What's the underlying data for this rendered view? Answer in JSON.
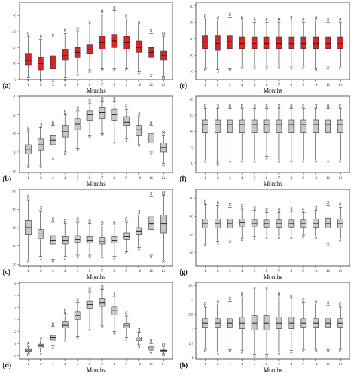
{
  "chart_data": [
    {
      "type": "boxplot",
      "panel_label": "(a)",
      "xlabel": "Months",
      "ylabel": "",
      "categories": [
        "1",
        "2",
        "3",
        "4",
        "5",
        "6",
        "7",
        "8",
        "9",
        "10",
        "11",
        "12"
      ],
      "ylim": [
        0,
        48
      ],
      "yticks": [
        0,
        10,
        20,
        30,
        40
      ],
      "box_color": "#d62728",
      "boxes": [
        {
          "whisker_low": 1,
          "q1": 9,
          "median": 12,
          "q3": 16,
          "whisker_high": 27
        },
        {
          "whisker_low": 0,
          "q1": 6,
          "median": 10,
          "q3": 14,
          "whisker_high": 25
        },
        {
          "whisker_low": 0,
          "q1": 7,
          "median": 11,
          "q3": 15,
          "whisker_high": 26
        },
        {
          "whisker_low": 1,
          "q1": 12,
          "median": 15,
          "q3": 19,
          "whisker_high": 29
        },
        {
          "whisker_low": 4,
          "q1": 14,
          "median": 17,
          "q3": 20,
          "whisker_high": 30
        },
        {
          "whisker_low": 6,
          "q1": 16,
          "median": 19,
          "q3": 22,
          "whisker_high": 34
        },
        {
          "whisker_low": 7,
          "q1": 19,
          "median": 23,
          "q3": 27,
          "whisker_high": 41
        },
        {
          "whisker_low": 7,
          "q1": 20,
          "median": 24,
          "q3": 28,
          "whisker_high": 43
        },
        {
          "whisker_low": 7,
          "q1": 19,
          "median": 23,
          "q3": 27,
          "whisker_high": 38
        },
        {
          "whisker_low": 5,
          "q1": 17,
          "median": 20,
          "q3": 24,
          "whisker_high": 34
        },
        {
          "whisker_low": 3,
          "q1": 14,
          "median": 17,
          "q3": 20,
          "whisker_high": 29
        },
        {
          "whisker_low": 2,
          "q1": 12,
          "median": 15,
          "q3": 18,
          "whisker_high": 27
        }
      ]
    },
    {
      "type": "boxplot",
      "panel_label": "(e)",
      "xlabel": "Months",
      "ylabel": "",
      "categories": [
        "1",
        "2",
        "3",
        "4",
        "5",
        "6",
        "7",
        "8",
        "9",
        "10",
        "11",
        "12"
      ],
      "ylim": [
        -5,
        42
      ],
      "yticks": [
        0,
        10,
        20,
        30,
        40
      ],
      "box_color": "#d62728",
      "boxes": [
        {
          "whisker_low": 2,
          "q1": 14,
          "median": 18,
          "q3": 22,
          "whisker_high": 32
        },
        {
          "whisker_low": 1,
          "q1": 13,
          "median": 17,
          "q3": 22,
          "whisker_high": 31
        },
        {
          "whisker_low": 2,
          "q1": 14,
          "median": 18,
          "q3": 22,
          "whisker_high": 33
        },
        {
          "whisker_low": 3,
          "q1": 14,
          "median": 17,
          "q3": 21,
          "whisker_high": 31
        },
        {
          "whisker_low": 3,
          "q1": 14,
          "median": 17,
          "q3": 21,
          "whisker_high": 30
        },
        {
          "whisker_low": 3,
          "q1": 14,
          "median": 17,
          "q3": 21,
          "whisker_high": 30
        },
        {
          "whisker_low": 3,
          "q1": 14,
          "median": 17,
          "q3": 21,
          "whisker_high": 30
        },
        {
          "whisker_low": 3,
          "q1": 14,
          "median": 17,
          "q3": 21,
          "whisker_high": 31
        },
        {
          "whisker_low": 3,
          "q1": 14,
          "median": 17,
          "q3": 21,
          "whisker_high": 30
        },
        {
          "whisker_low": 2,
          "q1": 14,
          "median": 17,
          "q3": 21,
          "whisker_high": 31
        },
        {
          "whisker_low": 3,
          "q1": 14,
          "median": 17,
          "q3": 21,
          "whisker_high": 30
        },
        {
          "whisker_low": 3,
          "q1": 14,
          "median": 17,
          "q3": 21,
          "whisker_high": 30
        }
      ]
    },
    {
      "type": "boxplot",
      "panel_label": "(b)",
      "xlabel": "Months",
      "ylabel": "",
      "categories": [
        "1",
        "2",
        "3",
        "4",
        "5",
        "6",
        "7",
        "8",
        "9",
        "10",
        "11",
        "12"
      ],
      "ylim": [
        -11,
        30
      ],
      "yticks": [
        -10,
        0,
        10,
        20,
        30
      ],
      "box_color": "#c8c8c8",
      "boxes": [
        {
          "whisker_low": -7,
          "q1": -1,
          "median": 1.5,
          "q3": 4,
          "whisker_high": 11
        },
        {
          "whisker_low": -7,
          "q1": 1,
          "median": 4,
          "q3": 7,
          "whisker_high": 13
        },
        {
          "whisker_low": -3,
          "q1": 4,
          "median": 6.5,
          "q3": 9,
          "whisker_high": 14
        },
        {
          "whisker_low": 0,
          "q1": 8,
          "median": 11,
          "q3": 14,
          "whisker_high": 20
        },
        {
          "whisker_low": 2,
          "q1": 12,
          "median": 15,
          "q3": 18,
          "whisker_high": 22
        },
        {
          "whisker_low": 9,
          "q1": 17,
          "median": 20,
          "q3": 22,
          "whisker_high": 26
        },
        {
          "whisker_low": 10,
          "q1": 18,
          "median": 21,
          "q3": 24,
          "whisker_high": 27
        },
        {
          "whisker_low": 6,
          "q1": 17,
          "median": 20,
          "q3": 23,
          "whisker_high": 27
        },
        {
          "whisker_low": 7,
          "q1": 14,
          "median": 16,
          "q3": 19,
          "whisker_high": 23
        },
        {
          "whisker_low": 4,
          "q1": 9,
          "median": 12,
          "q3": 14,
          "whisker_high": 19
        },
        {
          "whisker_low": 0,
          "q1": 5,
          "median": 7.5,
          "q3": 10,
          "whisker_high": 14
        },
        {
          "whisker_low": -6,
          "q1": 0,
          "median": 2.5,
          "q3": 5,
          "whisker_high": 9
        }
      ]
    },
    {
      "type": "boxplot",
      "panel_label": "(f)",
      "xlabel": "Months",
      "ylabel": "",
      "categories": [
        "1",
        "2",
        "3",
        "4",
        "5",
        "6",
        "7",
        "8",
        "9",
        "10",
        "11",
        "12"
      ],
      "ylim": [
        -3,
        21
      ],
      "yticks": [
        0,
        5,
        10,
        15,
        20
      ],
      "box_color": "#c8c8c8",
      "boxes": [
        {
          "whisker_low": 1,
          "q1": 9.5,
          "median": 12,
          "q3": 13.5,
          "whisker_high": 17
        },
        {
          "whisker_low": 0,
          "q1": 9.5,
          "median": 12,
          "q3": 13.5,
          "whisker_high": 17
        },
        {
          "whisker_low": 1,
          "q1": 9.5,
          "median": 12,
          "q3": 13.5,
          "whisker_high": 17
        },
        {
          "whisker_low": 1,
          "q1": 9.5,
          "median": 12,
          "q3": 13.5,
          "whisker_high": 17
        },
        {
          "whisker_low": 1,
          "q1": 9.5,
          "median": 12,
          "q3": 13.5,
          "whisker_high": 17
        },
        {
          "whisker_low": 2,
          "q1": 9.5,
          "median": 12,
          "q3": 13.5,
          "whisker_high": 17
        },
        {
          "whisker_low": 1,
          "q1": 9.5,
          "median": 12,
          "q3": 13.5,
          "whisker_high": 17
        },
        {
          "whisker_low": 1,
          "q1": 9.5,
          "median": 12,
          "q3": 13.5,
          "whisker_high": 17
        },
        {
          "whisker_low": 1,
          "q1": 9.5,
          "median": 12,
          "q3": 13.5,
          "whisker_high": 17
        },
        {
          "whisker_low": 1,
          "q1": 9.5,
          "median": 12,
          "q3": 13.5,
          "whisker_high": 17
        },
        {
          "whisker_low": 1,
          "q1": 9.5,
          "median": 12,
          "q3": 13.5,
          "whisker_high": 17
        },
        {
          "whisker_low": 1,
          "q1": 9.5,
          "median": 12,
          "q3": 13.5,
          "whisker_high": 17
        }
      ]
    },
    {
      "type": "boxplot",
      "panel_label": "(c)",
      "xlabel": "Months",
      "ylabel": "",
      "categories": [
        "1",
        "2",
        "3",
        "4",
        "5",
        "6",
        "7",
        "8",
        "9",
        "10",
        "11",
        "12"
      ],
      "ylim": [
        18,
        102
      ],
      "yticks": [
        20,
        40,
        60,
        80,
        100
      ],
      "box_color": "#c8c8c8",
      "boxes": [
        {
          "whisker_low": 24,
          "q1": 52,
          "median": 60,
          "q3": 68,
          "whisker_high": 90
        },
        {
          "whisker_low": 28,
          "q1": 48,
          "median": 53,
          "q3": 58,
          "whisker_high": 78
        },
        {
          "whisker_low": 25,
          "q1": 42,
          "median": 46,
          "q3": 51,
          "whisker_high": 66
        },
        {
          "whisker_low": 28,
          "q1": 42,
          "median": 46,
          "q3": 50,
          "whisker_high": 64
        },
        {
          "whisker_low": 30,
          "q1": 44,
          "median": 47,
          "q3": 51,
          "whisker_high": 66
        },
        {
          "whisker_low": 30,
          "q1": 43,
          "median": 46,
          "q3": 50,
          "whisker_high": 64
        },
        {
          "whisker_low": 29,
          "q1": 42,
          "median": 45,
          "q3": 49,
          "whisker_high": 62
        },
        {
          "whisker_low": 28,
          "q1": 43,
          "median": 46,
          "q3": 50,
          "whisker_high": 62
        },
        {
          "whisker_low": 34,
          "q1": 47,
          "median": 50,
          "q3": 54,
          "whisker_high": 66
        },
        {
          "whisker_low": 38,
          "q1": 52,
          "median": 56,
          "q3": 60,
          "whisker_high": 74
        },
        {
          "whisker_low": 30,
          "q1": 58,
          "median": 64,
          "q3": 72,
          "whisker_high": 94
        },
        {
          "whisker_low": 24,
          "q1": 54,
          "median": 64,
          "q3": 74,
          "whisker_high": 95
        }
      ]
    },
    {
      "type": "boxplot",
      "panel_label": "(g)",
      "xlabel": "Months",
      "ylabel": "",
      "categories": [
        "1",
        "2",
        "3",
        "4",
        "5",
        "6",
        "7",
        "8",
        "9",
        "10",
        "11",
        "12"
      ],
      "ylim": [
        5,
        90
      ],
      "yticks": [
        20,
        40,
        60,
        80
      ],
      "box_color": "#c8c8c8",
      "boxes": [
        {
          "whisker_low": 30,
          "q1": 47,
          "median": 52,
          "q3": 57,
          "whisker_high": 73
        },
        {
          "whisker_low": 32,
          "q1": 47,
          "median": 52,
          "q3": 57,
          "whisker_high": 72
        },
        {
          "whisker_low": 33,
          "q1": 47,
          "median": 52,
          "q3": 57,
          "whisker_high": 70
        },
        {
          "whisker_low": 36,
          "q1": 49,
          "median": 53,
          "q3": 57,
          "whisker_high": 68
        },
        {
          "whisker_low": 37,
          "q1": 49,
          "median": 52,
          "q3": 56,
          "whisker_high": 66
        },
        {
          "whisker_low": 38,
          "q1": 48,
          "median": 52,
          "q3": 56,
          "whisker_high": 64
        },
        {
          "whisker_low": 38,
          "q1": 48,
          "median": 52,
          "q3": 56,
          "whisker_high": 64
        },
        {
          "whisker_low": 38,
          "q1": 48,
          "median": 52,
          "q3": 56,
          "whisker_high": 65
        },
        {
          "whisker_low": 39,
          "q1": 48,
          "median": 52,
          "q3": 56,
          "whisker_high": 64
        },
        {
          "whisker_low": 38,
          "q1": 48,
          "median": 52,
          "q3": 57,
          "whisker_high": 66
        },
        {
          "whisker_low": 30,
          "q1": 47,
          "median": 52,
          "q3": 58,
          "whisker_high": 72
        },
        {
          "whisker_low": 35,
          "q1": 47,
          "median": 52,
          "q3": 57,
          "whisker_high": 70
        }
      ]
    },
    {
      "type": "boxplot",
      "panel_label": "(d)",
      "xlabel": "Months",
      "ylabel": "",
      "categories": [
        "1",
        "2",
        "3",
        "4",
        "5",
        "6",
        "7",
        "8",
        "9",
        "10",
        "11",
        "12"
      ],
      "ylim": [
        -0.3,
        6.1
      ],
      "yticks": [
        0,
        1,
        2,
        3,
        4,
        5,
        6
      ],
      "box_color": "#c8c8c8",
      "boxes": [
        {
          "whisker_low": 0.2,
          "q1": 0.35,
          "median": 0.45,
          "q3": 0.55,
          "whisker_high": 0.75
        },
        {
          "whisker_low": 0.3,
          "q1": 0.65,
          "median": 0.8,
          "q3": 0.95,
          "whisker_high": 1.2
        },
        {
          "whisker_low": 0.8,
          "q1": 1.3,
          "median": 1.5,
          "q3": 1.7,
          "whisker_high": 2.4
        },
        {
          "whisker_low": 1.4,
          "q1": 2.3,
          "median": 2.55,
          "q3": 2.8,
          "whisker_high": 3.5
        },
        {
          "whisker_low": 1.6,
          "q1": 3.0,
          "median": 3.35,
          "q3": 3.65,
          "whisker_high": 4.4
        },
        {
          "whisker_low": 2.3,
          "q1": 3.9,
          "median": 4.25,
          "q3": 4.55,
          "whisker_high": 5.3
        },
        {
          "whisker_low": 2.5,
          "q1": 4.1,
          "median": 4.4,
          "q3": 4.75,
          "whisker_high": 5.5
        },
        {
          "whisker_low": 2.0,
          "q1": 3.4,
          "median": 3.75,
          "q3": 4.05,
          "whisker_high": 4.9
        },
        {
          "whisker_low": 1.5,
          "q1": 2.3,
          "median": 2.5,
          "q3": 2.7,
          "whisker_high": 3.3
        },
        {
          "whisker_low": 0.9,
          "q1": 1.25,
          "median": 1.4,
          "q3": 1.55,
          "whisker_high": 1.9
        },
        {
          "whisker_low": 0.4,
          "q1": 0.55,
          "median": 0.65,
          "q3": 0.75,
          "whisker_high": 1.0
        },
        {
          "whisker_low": 0.2,
          "q1": 0.35,
          "median": 0.42,
          "q3": 0.5,
          "whisker_high": 0.65
        }
      ]
    },
    {
      "type": "boxplot",
      "panel_label": "(h)",
      "xlabel": "Months",
      "ylabel": "",
      "categories": [
        "1",
        "2",
        "3",
        "4",
        "5",
        "6",
        "7",
        "8",
        "9",
        "10",
        "11",
        "12"
      ],
      "ylim": [
        0.95,
        3.6
      ],
      "yticks": [
        1.0,
        1.5,
        2.0,
        2.5,
        3.0,
        3.5
      ],
      "box_color": "#c8c8c8",
      "boxes": [
        {
          "whisker_low": 1.3,
          "q1": 2.05,
          "median": 2.2,
          "q3": 2.35,
          "whisker_high": 2.75
        },
        {
          "whisker_low": 1.2,
          "q1": 2.05,
          "median": 2.2,
          "q3": 2.35,
          "whisker_high": 2.85
        },
        {
          "whisker_low": 1.3,
          "q1": 2.05,
          "median": 2.2,
          "q3": 2.35,
          "whisker_high": 2.95
        },
        {
          "whisker_low": 1.25,
          "q1": 2.0,
          "median": 2.2,
          "q3": 2.4,
          "whisker_high": 3.1
        },
        {
          "whisker_low": 1.1,
          "q1": 1.95,
          "median": 2.2,
          "q3": 2.45,
          "whisker_high": 3.3
        },
        {
          "whisker_low": 1.1,
          "q1": 1.95,
          "median": 2.2,
          "q3": 2.45,
          "whisker_high": 3.3
        },
        {
          "whisker_low": 1.2,
          "q1": 2.0,
          "median": 2.2,
          "q3": 2.4,
          "whisker_high": 3.1
        },
        {
          "whisker_low": 1.25,
          "q1": 2.0,
          "median": 2.2,
          "q3": 2.4,
          "whisker_high": 3.0
        },
        {
          "whisker_low": 1.3,
          "q1": 2.05,
          "median": 2.2,
          "q3": 2.35,
          "whisker_high": 2.9
        },
        {
          "whisker_low": 1.3,
          "q1": 2.05,
          "median": 2.2,
          "q3": 2.35,
          "whisker_high": 2.85
        },
        {
          "whisker_low": 1.3,
          "q1": 2.05,
          "median": 2.2,
          "q3": 2.35,
          "whisker_high": 2.8
        },
        {
          "whisker_low": 1.3,
          "q1": 2.05,
          "median": 2.2,
          "q3": 2.35,
          "whisker_high": 2.75
        }
      ]
    }
  ]
}
